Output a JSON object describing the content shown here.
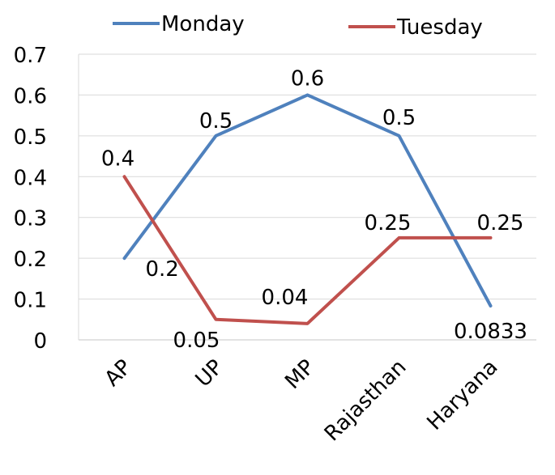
{
  "chart_data": {
    "type": "line",
    "title": "",
    "xlabel": "",
    "ylabel": "",
    "categories": [
      "AP",
      "UP",
      "MP",
      "Rajasthan",
      "Haryana"
    ],
    "ylim": [
      0,
      0.7
    ],
    "yticks": [
      "0",
      "0.1",
      "0.2",
      "0.3",
      "0.4",
      "0.5",
      "0.6",
      "0.7"
    ],
    "grid": true,
    "legend_position": "top",
    "series": [
      {
        "name": "Monday",
        "color": "#4F81BD",
        "values": [
          0.2,
          0.5,
          0.6,
          0.5,
          0.0833
        ],
        "labels": [
          "0.2",
          "0.5",
          "0.6",
          "0.5",
          "0.0833"
        ]
      },
      {
        "name": "Tuesday",
        "color": "#C0504D",
        "values": [
          0.4,
          0.05,
          0.04,
          0.25,
          0.25
        ],
        "labels": [
          "0.4",
          "0.05",
          "0.04",
          "0.25",
          "0.25"
        ]
      }
    ]
  }
}
